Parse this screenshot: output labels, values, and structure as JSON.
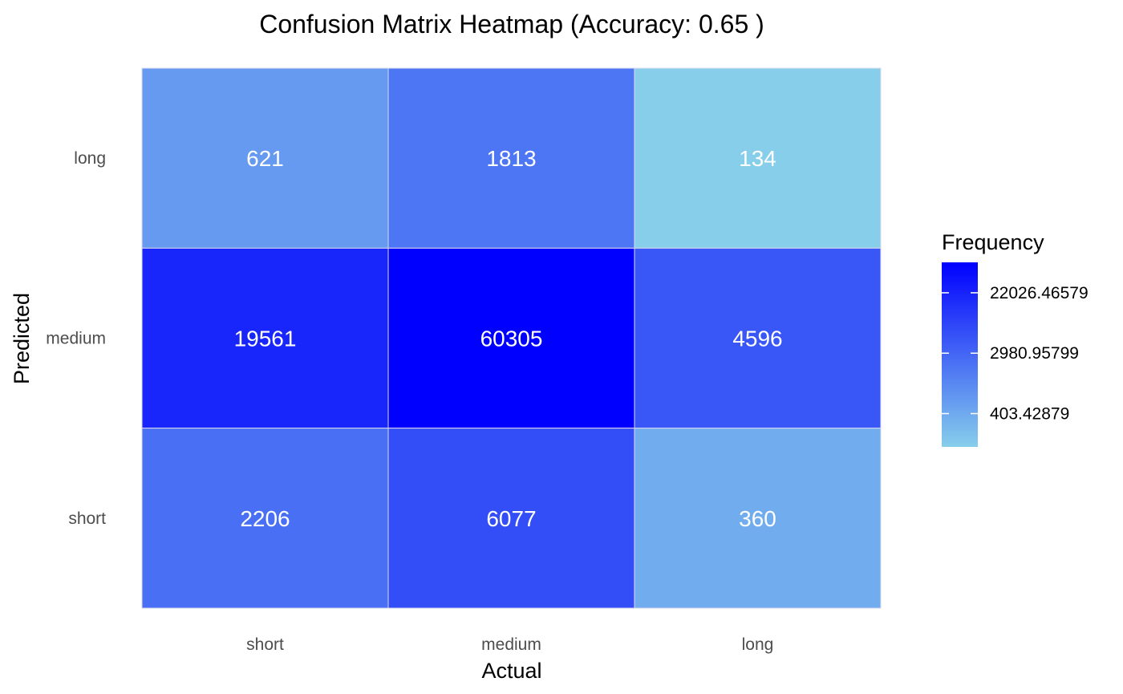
{
  "chart_data": {
    "type": "heatmap",
    "title": "Confusion Matrix Heatmap (Accuracy: 0.65 )",
    "xlabel": "Actual",
    "ylabel": "Predicted",
    "x_categories": [
      "short",
      "medium",
      "long"
    ],
    "y_categories": [
      "short",
      "medium",
      "long"
    ],
    "cells": [
      {
        "actual": "short",
        "predicted": "long",
        "value": 621
      },
      {
        "actual": "medium",
        "predicted": "long",
        "value": 1813
      },
      {
        "actual": "long",
        "predicted": "long",
        "value": 134
      },
      {
        "actual": "short",
        "predicted": "medium",
        "value": 19561
      },
      {
        "actual": "medium",
        "predicted": "medium",
        "value": 60305
      },
      {
        "actual": "long",
        "predicted": "medium",
        "value": 4596
      },
      {
        "actual": "short",
        "predicted": "short",
        "value": 2206
      },
      {
        "actual": "medium",
        "predicted": "short",
        "value": 6077
      },
      {
        "actual": "long",
        "predicted": "short",
        "value": 360
      }
    ],
    "color_scale": {
      "type": "log",
      "low_color": "#87ceeb",
      "high_color": "#0000ff",
      "range": [
        134,
        60305
      ]
    },
    "legend": {
      "title": "Frequency",
      "placement": "right",
      "breaks": [
        403.42879,
        2980.95799,
        22026.46579
      ],
      "labels": [
        "403.42879",
        "2980.95799",
        "22026.46579"
      ]
    },
    "grid": false
  }
}
